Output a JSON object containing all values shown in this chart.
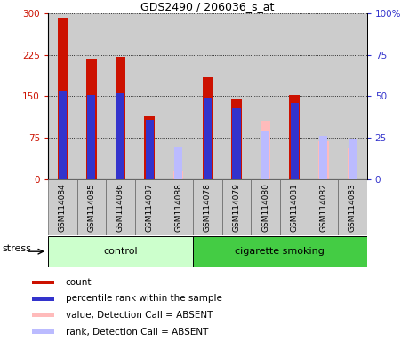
{
  "title": "GDS2490 / 206036_s_at",
  "samples": [
    "GSM114084",
    "GSM114085",
    "GSM114086",
    "GSM114087",
    "GSM114088",
    "GSM114078",
    "GSM114079",
    "GSM114080",
    "GSM114081",
    "GSM114082",
    "GSM114083"
  ],
  "count_values": [
    292,
    218,
    222,
    113,
    null,
    185,
    145,
    null,
    152,
    null,
    null
  ],
  "rank_values_pct": [
    53,
    51,
    52,
    36,
    null,
    49,
    43,
    null,
    46,
    null,
    null
  ],
  "absent_value_values": [
    null,
    null,
    null,
    null,
    15,
    null,
    null,
    105,
    null,
    68,
    55
  ],
  "absent_rank_values_pct": [
    null,
    null,
    null,
    null,
    19,
    null,
    null,
    29,
    null,
    26,
    24
  ],
  "ylim_left": [
    0,
    300
  ],
  "ylim_right": [
    0,
    100
  ],
  "yticks_left": [
    0,
    75,
    150,
    225,
    300
  ],
  "yticks_right": [
    0,
    25,
    50,
    75,
    100
  ],
  "ytick_labels_left": [
    "0",
    "75",
    "150",
    "225",
    "300"
  ],
  "ytick_labels_right": [
    "0",
    "25",
    "50",
    "75",
    "100%"
  ],
  "count_color": "#cc1100",
  "rank_color": "#3333cc",
  "absent_value_color": "#ffbbbb",
  "absent_rank_color": "#bbbbff",
  "control_color": "#ccffcc",
  "smoking_color": "#44cc44",
  "bg_color": "#cccccc",
  "stress_label": "stress",
  "control_label": "control",
  "smoking_label": "cigarette smoking",
  "legend_items": [
    {
      "label": "count",
      "color": "#cc1100"
    },
    {
      "label": "percentile rank within the sample",
      "color": "#3333cc"
    },
    {
      "label": "value, Detection Call = ABSENT",
      "color": "#ffbbbb"
    },
    {
      "label": "rank, Detection Call = ABSENT",
      "color": "#bbbbff"
    }
  ],
  "n_control": 5,
  "n_samples": 11
}
